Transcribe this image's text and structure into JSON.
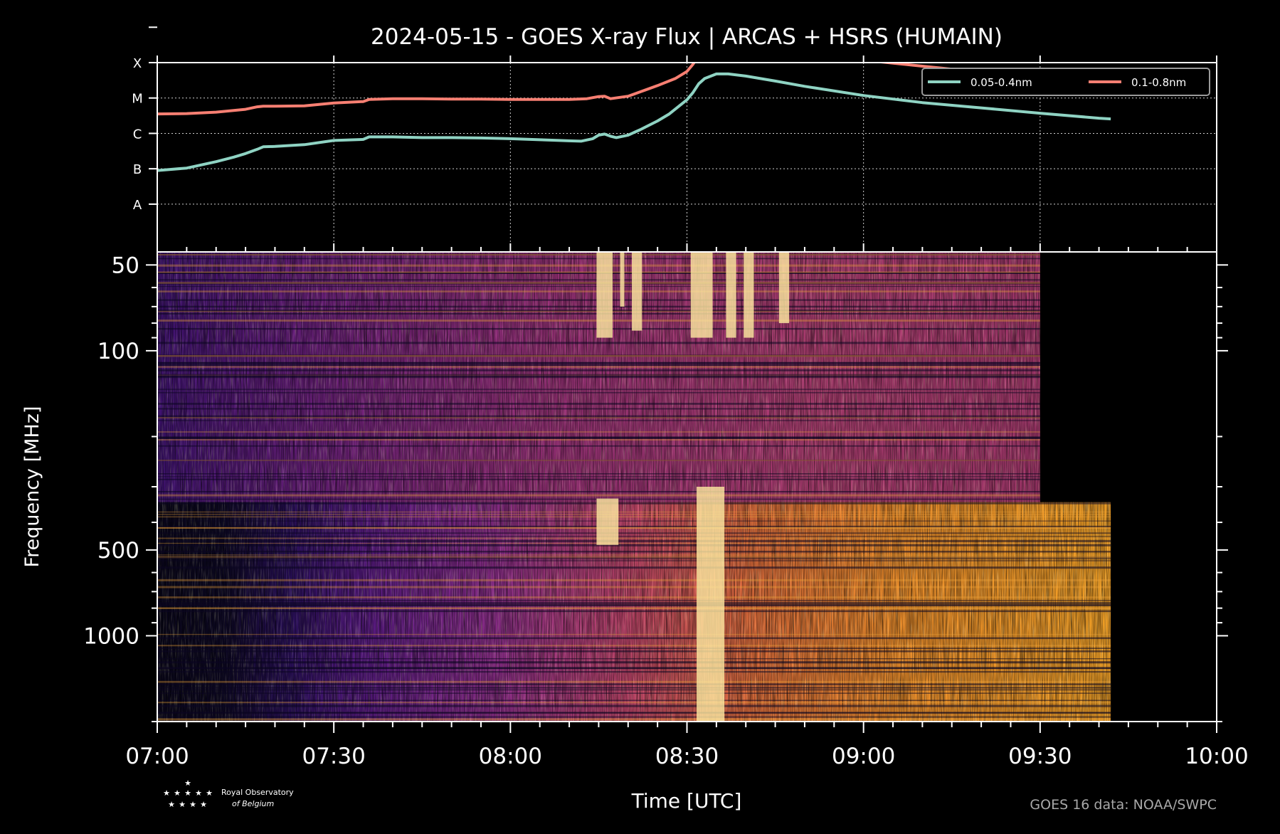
{
  "title": "2024-05-15 - GOES X-ray Flux | ARCAS + HSRS (HUMAIN)",
  "credit": "GOES 16 data: NOAA/SWPC",
  "logo": {
    "line1": "Royal Observatory",
    "line2": "of Belgium"
  },
  "colors": {
    "background": "#000000",
    "axes": "#ffffff",
    "short_channel": "#8fd3c3",
    "long_channel": "#f77f72",
    "legend_border": "#9a9a9a",
    "credit": "#a8a8a8"
  },
  "chart_data": [
    {
      "type": "line",
      "panel": "goes-xray-flux",
      "y_scale": "log",
      "y_ticks": [
        "A",
        "B",
        "C",
        "M",
        "X"
      ],
      "ylim_class": [
        -0.35,
        5.0
      ],
      "grid": true,
      "legend_position": "top-right",
      "x_domain": [
        "07:00",
        "10:00"
      ],
      "series": [
        {
          "name": "0.05-0.4nm",
          "color": "#8fd3c3",
          "x": [
            "07:00",
            "07:05",
            "07:10",
            "07:13",
            "07:15",
            "07:17",
            "07:18",
            "07:20",
            "07:25",
            "07:30",
            "07:35",
            "07:36",
            "07:40",
            "07:45",
            "07:50",
            "07:55",
            "08:00",
            "08:05",
            "08:10",
            "08:12",
            "08:14",
            "08:15",
            "08:16",
            "08:17",
            "08:18",
            "08:20",
            "08:22",
            "08:25",
            "08:27",
            "08:30",
            "08:31",
            "08:32",
            "08:33",
            "08:35",
            "08:37",
            "08:40",
            "08:45",
            "08:50",
            "09:00",
            "09:10",
            "09:20",
            "09:30",
            "09:40",
            "09:42"
          ],
          "y": [
            1.95,
            2.02,
            2.2,
            2.33,
            2.43,
            2.55,
            2.62,
            2.63,
            2.68,
            2.8,
            2.83,
            2.9,
            2.9,
            2.88,
            2.88,
            2.87,
            2.85,
            2.82,
            2.79,
            2.78,
            2.85,
            2.95,
            2.98,
            2.92,
            2.88,
            2.95,
            3.1,
            3.35,
            3.55,
            3.95,
            4.15,
            4.4,
            4.55,
            4.68,
            4.68,
            4.62,
            4.48,
            4.33,
            4.07,
            3.87,
            3.72,
            3.57,
            3.43,
            3.41
          ]
        },
        {
          "name": "0.1-0.8nm",
          "color": "#f77f72",
          "x": [
            "07:00",
            "07:05",
            "07:10",
            "07:15",
            "07:17",
            "07:18",
            "07:20",
            "07:25",
            "07:30",
            "07:35",
            "07:36",
            "07:40",
            "07:45",
            "07:50",
            "07:55",
            "08:00",
            "08:05",
            "08:10",
            "08:13",
            "08:15",
            "08:16",
            "08:17",
            "08:20",
            "08:22",
            "08:25",
            "08:28",
            "08:30",
            "08:31",
            "08:32",
            "08:33",
            "08:35",
            "08:37",
            "08:40",
            "08:45",
            "08:50",
            "09:00",
            "09:10",
            "09:20",
            "09:30",
            "09:40",
            "09:42"
          ],
          "y": [
            3.55,
            3.56,
            3.6,
            3.68,
            3.75,
            3.77,
            3.77,
            3.78,
            3.86,
            3.9,
            3.96,
            3.98,
            3.98,
            3.97,
            3.97,
            3.96,
            3.96,
            3.96,
            3.98,
            4.04,
            4.05,
            3.98,
            4.05,
            4.17,
            4.35,
            4.55,
            4.75,
            4.95,
            5.2,
            5.42,
            5.55,
            5.56,
            5.53,
            5.43,
            5.31,
            5.07,
            4.9,
            4.73,
            4.58,
            4.43,
            4.4
          ]
        }
      ]
    },
    {
      "type": "heatmap",
      "panel": "radio-dynamic-spectrum",
      "colormap": "inferno",
      "xlabel": "Time [UTC]",
      "ylabel": "Frequency [MHz]",
      "y_scale": "log",
      "ylim": [
        45,
        2000
      ],
      "y_ticks": [
        50,
        100,
        500,
        1000
      ],
      "x_ticks": [
        "07:00",
        "07:30",
        "08:00",
        "08:30",
        "09:00",
        "09:30",
        "10:00"
      ],
      "x_domain": [
        "07:00",
        "10:00"
      ],
      "instruments": [
        {
          "name": "ARCAS",
          "f_range_mhz": [
            45,
            340
          ],
          "t_range": [
            "07:00",
            "09:30"
          ]
        },
        {
          "name": "HSRS",
          "f_range_mhz": [
            340,
            2000
          ],
          "t_range": [
            "07:00",
            "09:42"
          ]
        }
      ],
      "bursts": [
        {
          "t_start": "08:15",
          "t_end": "08:17",
          "f_range_mhz": [
            45,
            90
          ]
        },
        {
          "t_start": "08:19",
          "t_end": "08:19",
          "f_range_mhz": [
            45,
            70
          ]
        },
        {
          "t_start": "08:21",
          "t_end": "08:22",
          "f_range_mhz": [
            45,
            85
          ]
        },
        {
          "t_start": "08:31",
          "t_end": "08:34",
          "f_range_mhz": [
            45,
            90
          ]
        },
        {
          "t_start": "08:37",
          "t_end": "08:38",
          "f_range_mhz": [
            45,
            90
          ]
        },
        {
          "t_start": "08:40",
          "t_end": "08:41",
          "f_range_mhz": [
            45,
            90
          ]
        },
        {
          "t_start": "08:46",
          "t_end": "08:47",
          "f_range_mhz": [
            45,
            80
          ]
        },
        {
          "t_start": "08:15",
          "t_end": "08:18",
          "f_range_mhz": [
            330,
            480
          ]
        },
        {
          "t_start": "08:32",
          "t_end": "08:36",
          "f_range_mhz": [
            300,
            2000
          ]
        }
      ]
    }
  ]
}
